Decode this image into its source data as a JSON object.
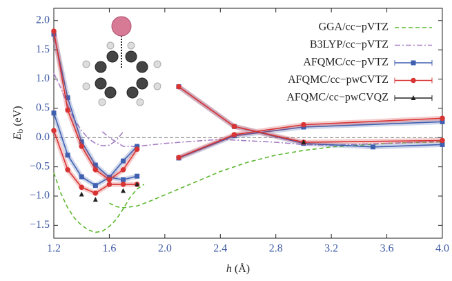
{
  "chart_data": {
    "type": "line",
    "xlabel": "h",
    "xlabel_unit": "(Å)",
    "ylabel": "E",
    "ylabel_sub": "b",
    "ylabel_unit": "(eV)",
    "xlim": [
      1.2,
      4.0
    ],
    "ylim": [
      -1.72,
      2.21
    ],
    "xticks": [
      1.2,
      1.6,
      {
        "value": 2.0,
        "label": "2.0"
      },
      2.4,
      2.8,
      3.2,
      3.6,
      {
        "value": 4.0,
        "label": "4.0"
      }
    ],
    "yticks": [
      {
        "value": -1.5,
        "label": "−1.5"
      },
      {
        "value": -1.0,
        "label": "−1.0"
      },
      {
        "value": -0.5,
        "label": "−0.5"
      },
      {
        "value": 0,
        "label": "0.0"
      },
      {
        "value": 0.5,
        "label": "0.5"
      },
      {
        "value": 1.0,
        "label": "1.0"
      },
      {
        "value": 1.5,
        "label": "1.5"
      },
      {
        "value": 2.0,
        "label": "2.0"
      }
    ],
    "legend": "upper right",
    "series": [
      {
        "name": "GGA/cc−pVTZ",
        "color": "#5cb82e",
        "style": "dashed",
        "marker": "none",
        "line": true,
        "x": [
          1.2,
          1.25,
          1.3,
          1.35,
          1.4,
          1.45,
          1.5,
          1.55,
          1.6,
          1.65,
          1.7,
          1.75,
          1.8,
          1.85,
          null,
          1.6,
          1.65,
          1.7,
          1.8,
          1.9,
          2.0,
          2.2,
          2.4,
          2.6,
          2.8,
          3.0,
          3.2,
          3.6,
          4.0
        ],
        "values": [
          -0.6,
          -0.95,
          -1.2,
          -1.38,
          -1.5,
          -1.58,
          -1.62,
          -1.6,
          -1.52,
          -1.4,
          -1.22,
          -1.02,
          -0.88,
          -0.8,
          null,
          -1.12,
          -1.18,
          -1.2,
          -1.17,
          -1.08,
          -0.98,
          -0.78,
          -0.58,
          -0.42,
          -0.3,
          -0.22,
          -0.16,
          -0.1,
          -0.07
        ]
      },
      {
        "name": "B3LYP/cc−pVTZ",
        "color": "#a57fc5",
        "style": "dashdot",
        "marker": "none",
        "line": true,
        "x": [
          1.2,
          1.25,
          1.3,
          1.35,
          1.4,
          1.45,
          1.5,
          1.55,
          1.6,
          1.65,
          1.7,
          null,
          1.55,
          1.6,
          1.7,
          1.8,
          2.0,
          2.4,
          2.8,
          3.0,
          3.2,
          3.6,
          4.0
        ],
        "values": [
          1.1,
          0.85,
          0.55,
          0.3,
          0.12,
          -0.02,
          -0.1,
          -0.14,
          -0.13,
          -0.05,
          0.1,
          null,
          0.1,
          0.0,
          -0.15,
          -0.15,
          -0.1,
          -0.03,
          -0.08,
          -0.12,
          -0.13,
          -0.1,
          -0.06
        ]
      },
      {
        "name": "AFQMC/cc−pVTZ",
        "color": "#3f5fb0",
        "style": "solid",
        "marker": "square",
        "line": true,
        "x": [
          1.2,
          1.3,
          1.4,
          1.5,
          1.6,
          1.7,
          1.8,
          null,
          1.2,
          1.3,
          1.4,
          1.5,
          1.6,
          1.7,
          1.8,
          null,
          2.1,
          2.5,
          3.0,
          3.5,
          4.0,
          null,
          2.1,
          2.5,
          3.0,
          4.0
        ],
        "values": [
          1.77,
          0.68,
          -0.07,
          -0.47,
          -0.68,
          -0.4,
          -0.15,
          null,
          0.42,
          -0.3,
          -0.67,
          -0.82,
          -0.68,
          -0.72,
          -0.66,
          null,
          0.87,
          0.19,
          -0.1,
          -0.16,
          -0.12,
          null,
          -0.35,
          0.03,
          0.18,
          0.27
        ]
      },
      {
        "name": "AFQMC/cc−pwCVTZ",
        "color": "#d93434",
        "style": "solid",
        "marker": "circle",
        "line": true,
        "x": [
          1.2,
          1.3,
          1.4,
          1.5,
          1.6,
          1.7,
          1.8,
          null,
          1.2,
          1.3,
          1.4,
          1.5,
          1.6,
          1.7,
          1.8,
          null,
          2.1,
          2.5,
          3.0,
          4.0,
          null,
          2.1,
          2.5,
          3.0,
          4.0
        ],
        "values": [
          1.82,
          0.47,
          -0.15,
          -0.55,
          -0.72,
          -0.55,
          -0.2,
          null,
          0.12,
          -0.55,
          -0.85,
          -0.95,
          -0.8,
          -0.8,
          -0.8,
          null,
          0.87,
          0.19,
          -0.08,
          -0.05,
          null,
          -0.34,
          0.05,
          0.22,
          0.33
        ]
      },
      {
        "name": "AFQMC/cc−pwCVQZ",
        "color": "#222222",
        "style": "solid",
        "marker": "triangle",
        "line": false,
        "x": [
          1.4,
          1.5,
          1.7,
          1.8,
          3.0
        ],
        "values": [
          -0.97,
          -1.06,
          -0.91,
          -0.8,
          -0.08
        ]
      }
    ]
  }
}
